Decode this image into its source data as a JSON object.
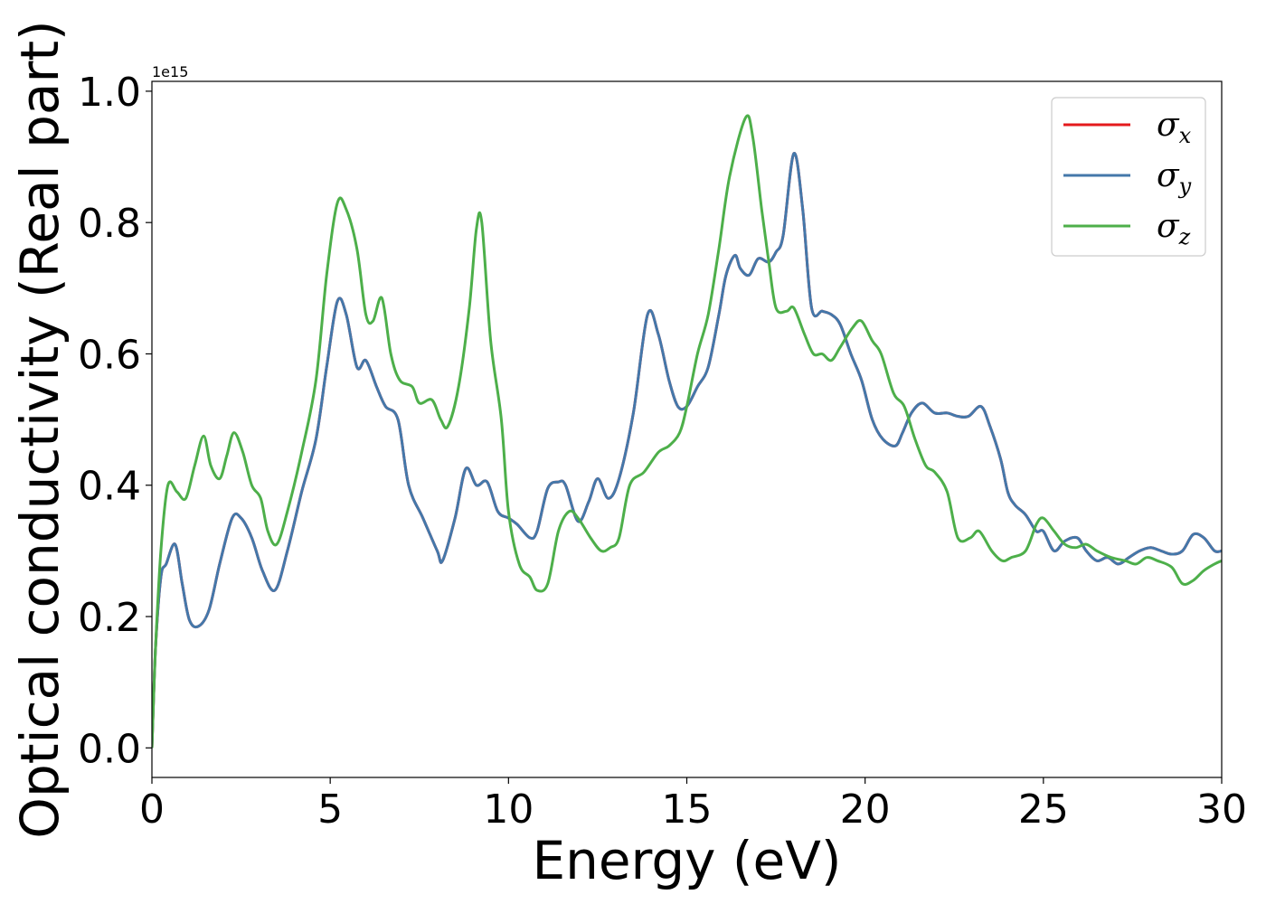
{
  "chart_data": {
    "type": "line",
    "title": "",
    "xlabel": "Energy (eV)",
    "ylabel": "Optical conductivity (Real part)",
    "y_offset_label": "1e15",
    "xlim": [
      0,
      30
    ],
    "ylim": [
      -0.045,
      1.015
    ],
    "xticks": [
      0,
      5,
      10,
      15,
      20,
      25,
      30
    ],
    "yticks": [
      0.0,
      0.2,
      0.4,
      0.6,
      0.8,
      1.0
    ],
    "xtick_labels": [
      "0",
      "5",
      "10",
      "15",
      "20",
      "25",
      "30"
    ],
    "ytick_labels": [
      "0.0",
      "0.2",
      "0.4",
      "0.6",
      "0.8",
      "1.0"
    ],
    "grid": false,
    "legend_position": "top-right",
    "series": [
      {
        "name": "σx",
        "symbol": "σ",
        "subscript": "x",
        "color": "#e41a1c",
        "x": [
          0,
          0.1,
          0.25,
          0.4,
          0.65,
          0.85,
          1.05,
          1.3,
          1.6,
          1.9,
          2.25,
          2.5,
          2.8,
          3.1,
          3.45,
          3.8,
          4.2,
          4.6,
          4.9,
          5.2,
          5.45,
          5.75,
          6.0,
          6.3,
          6.55,
          6.9,
          7.2,
          7.6,
          8.0,
          8.15,
          8.5,
          8.8,
          9.1,
          9.4,
          9.7,
          10.0,
          10.25,
          10.6,
          10.8,
          11.1,
          11.4,
          11.6,
          11.95,
          12.25,
          12.5,
          12.8,
          13.1,
          13.5,
          13.9,
          14.2,
          14.5,
          14.75,
          15.0,
          15.3,
          15.6,
          15.9,
          16.1,
          16.35,
          16.5,
          16.75,
          17.0,
          17.3,
          17.5,
          17.7,
          18.0,
          18.25,
          18.5,
          18.8,
          19.05,
          19.3,
          19.6,
          19.9,
          20.2,
          20.5,
          20.85,
          21.05,
          21.3,
          21.6,
          21.95,
          22.3,
          22.6,
          22.9,
          23.25,
          23.5,
          23.8,
          24.0,
          24.2,
          24.5,
          24.8,
          25.0,
          25.3,
          25.6,
          25.95,
          26.2,
          26.5,
          26.8,
          27.1,
          27.4,
          27.7,
          28.0,
          28.3,
          28.6,
          28.9,
          29.2,
          29.5,
          29.8,
          30.0
        ],
        "y": [
          0.0,
          0.15,
          0.26,
          0.28,
          0.31,
          0.25,
          0.195,
          0.185,
          0.21,
          0.28,
          0.35,
          0.35,
          0.32,
          0.27,
          0.24,
          0.3,
          0.39,
          0.47,
          0.58,
          0.68,
          0.66,
          0.58,
          0.59,
          0.55,
          0.52,
          0.5,
          0.4,
          0.35,
          0.3,
          0.285,
          0.35,
          0.425,
          0.4,
          0.405,
          0.36,
          0.35,
          0.34,
          0.32,
          0.33,
          0.395,
          0.405,
          0.4,
          0.345,
          0.375,
          0.41,
          0.38,
          0.41,
          0.51,
          0.66,
          0.63,
          0.56,
          0.52,
          0.52,
          0.55,
          0.58,
          0.66,
          0.72,
          0.75,
          0.73,
          0.72,
          0.745,
          0.74,
          0.755,
          0.78,
          0.905,
          0.82,
          0.67,
          0.665,
          0.66,
          0.645,
          0.6,
          0.56,
          0.5,
          0.47,
          0.46,
          0.48,
          0.51,
          0.525,
          0.51,
          0.51,
          0.505,
          0.505,
          0.52,
          0.49,
          0.44,
          0.39,
          0.37,
          0.355,
          0.33,
          0.33,
          0.3,
          0.315,
          0.32,
          0.3,
          0.285,
          0.29,
          0.28,
          0.29,
          0.3,
          0.305,
          0.3,
          0.295,
          0.3,
          0.325,
          0.32,
          0.3,
          0.3
        ]
      },
      {
        "name": "σy",
        "symbol": "σ",
        "subscript": "y",
        "color": "#4478aa",
        "x": [
          0,
          0.1,
          0.25,
          0.4,
          0.65,
          0.85,
          1.05,
          1.3,
          1.6,
          1.9,
          2.25,
          2.5,
          2.8,
          3.1,
          3.45,
          3.8,
          4.2,
          4.6,
          4.9,
          5.2,
          5.45,
          5.75,
          6.0,
          6.3,
          6.55,
          6.9,
          7.2,
          7.6,
          8.0,
          8.15,
          8.5,
          8.8,
          9.1,
          9.4,
          9.7,
          10.0,
          10.25,
          10.6,
          10.8,
          11.1,
          11.4,
          11.6,
          11.95,
          12.25,
          12.5,
          12.8,
          13.1,
          13.5,
          13.9,
          14.2,
          14.5,
          14.75,
          15.0,
          15.3,
          15.6,
          15.9,
          16.1,
          16.35,
          16.5,
          16.75,
          17.0,
          17.3,
          17.5,
          17.7,
          18.0,
          18.25,
          18.5,
          18.8,
          19.05,
          19.3,
          19.6,
          19.9,
          20.2,
          20.5,
          20.85,
          21.05,
          21.3,
          21.6,
          21.95,
          22.3,
          22.6,
          22.9,
          23.25,
          23.5,
          23.8,
          24.0,
          24.2,
          24.5,
          24.8,
          25.0,
          25.3,
          25.6,
          25.95,
          26.2,
          26.5,
          26.8,
          27.1,
          27.4,
          27.7,
          28.0,
          28.3,
          28.6,
          28.9,
          29.2,
          29.5,
          29.8,
          30.0
        ],
        "y": [
          0.0,
          0.15,
          0.26,
          0.28,
          0.31,
          0.25,
          0.195,
          0.185,
          0.21,
          0.28,
          0.35,
          0.35,
          0.32,
          0.27,
          0.24,
          0.3,
          0.39,
          0.47,
          0.58,
          0.68,
          0.66,
          0.58,
          0.59,
          0.55,
          0.52,
          0.5,
          0.4,
          0.35,
          0.3,
          0.285,
          0.35,
          0.425,
          0.4,
          0.405,
          0.36,
          0.35,
          0.34,
          0.32,
          0.33,
          0.395,
          0.405,
          0.4,
          0.345,
          0.375,
          0.41,
          0.38,
          0.41,
          0.51,
          0.66,
          0.63,
          0.56,
          0.52,
          0.52,
          0.55,
          0.58,
          0.66,
          0.72,
          0.75,
          0.73,
          0.72,
          0.745,
          0.74,
          0.755,
          0.78,
          0.905,
          0.82,
          0.67,
          0.665,
          0.66,
          0.645,
          0.6,
          0.56,
          0.5,
          0.47,
          0.46,
          0.48,
          0.51,
          0.525,
          0.51,
          0.51,
          0.505,
          0.505,
          0.52,
          0.49,
          0.44,
          0.39,
          0.37,
          0.355,
          0.33,
          0.33,
          0.3,
          0.315,
          0.32,
          0.3,
          0.285,
          0.29,
          0.28,
          0.29,
          0.3,
          0.305,
          0.3,
          0.295,
          0.3,
          0.325,
          0.32,
          0.3,
          0.3
        ]
      },
      {
        "name": "σz",
        "symbol": "σ",
        "subscript": "z",
        "color": "#4daf4a",
        "x": [
          0,
          0.1,
          0.25,
          0.45,
          0.7,
          0.95,
          1.2,
          1.45,
          1.65,
          1.9,
          2.1,
          2.3,
          2.55,
          2.8,
          3.05,
          3.25,
          3.5,
          3.8,
          4.2,
          4.6,
          4.9,
          5.2,
          5.45,
          5.75,
          6.0,
          6.2,
          6.45,
          6.7,
          6.95,
          7.3,
          7.5,
          7.85,
          8.1,
          8.3,
          8.6,
          8.9,
          9.1,
          9.25,
          9.5,
          9.8,
          10.0,
          10.3,
          10.6,
          10.8,
          11.1,
          11.4,
          11.7,
          11.95,
          12.3,
          12.6,
          12.85,
          13.1,
          13.4,
          13.8,
          14.2,
          14.5,
          14.8,
          15.0,
          15.3,
          15.6,
          15.9,
          16.2,
          16.65,
          16.85,
          17.1,
          17.3,
          17.5,
          17.8,
          18.0,
          18.3,
          18.55,
          18.8,
          19.05,
          19.3,
          19.65,
          19.9,
          20.2,
          20.45,
          20.8,
          21.1,
          21.4,
          21.7,
          21.95,
          22.3,
          22.6,
          22.95,
          23.2,
          23.55,
          23.85,
          24.1,
          24.5,
          24.8,
          25.0,
          25.3,
          25.6,
          25.9,
          26.2,
          26.5,
          26.9,
          27.3,
          27.6,
          27.9,
          28.2,
          28.6,
          28.9,
          29.2,
          29.5,
          29.8,
          30.0
        ],
        "y": [
          0.0,
          0.15,
          0.3,
          0.4,
          0.39,
          0.38,
          0.43,
          0.475,
          0.43,
          0.41,
          0.445,
          0.48,
          0.45,
          0.4,
          0.38,
          0.33,
          0.31,
          0.36,
          0.45,
          0.56,
          0.72,
          0.83,
          0.82,
          0.76,
          0.66,
          0.65,
          0.685,
          0.6,
          0.56,
          0.55,
          0.525,
          0.53,
          0.5,
          0.49,
          0.55,
          0.67,
          0.79,
          0.8,
          0.62,
          0.5,
          0.36,
          0.28,
          0.26,
          0.24,
          0.25,
          0.33,
          0.36,
          0.35,
          0.32,
          0.3,
          0.305,
          0.32,
          0.4,
          0.42,
          0.45,
          0.46,
          0.48,
          0.52,
          0.6,
          0.66,
          0.76,
          0.87,
          0.96,
          0.93,
          0.82,
          0.74,
          0.67,
          0.665,
          0.67,
          0.63,
          0.6,
          0.6,
          0.59,
          0.61,
          0.64,
          0.65,
          0.62,
          0.6,
          0.54,
          0.52,
          0.47,
          0.43,
          0.42,
          0.39,
          0.32,
          0.32,
          0.33,
          0.3,
          0.285,
          0.29,
          0.3,
          0.34,
          0.35,
          0.33,
          0.31,
          0.305,
          0.31,
          0.3,
          0.29,
          0.285,
          0.28,
          0.29,
          0.285,
          0.275,
          0.25,
          0.255,
          0.27,
          0.28,
          0.285
        ]
      }
    ]
  }
}
